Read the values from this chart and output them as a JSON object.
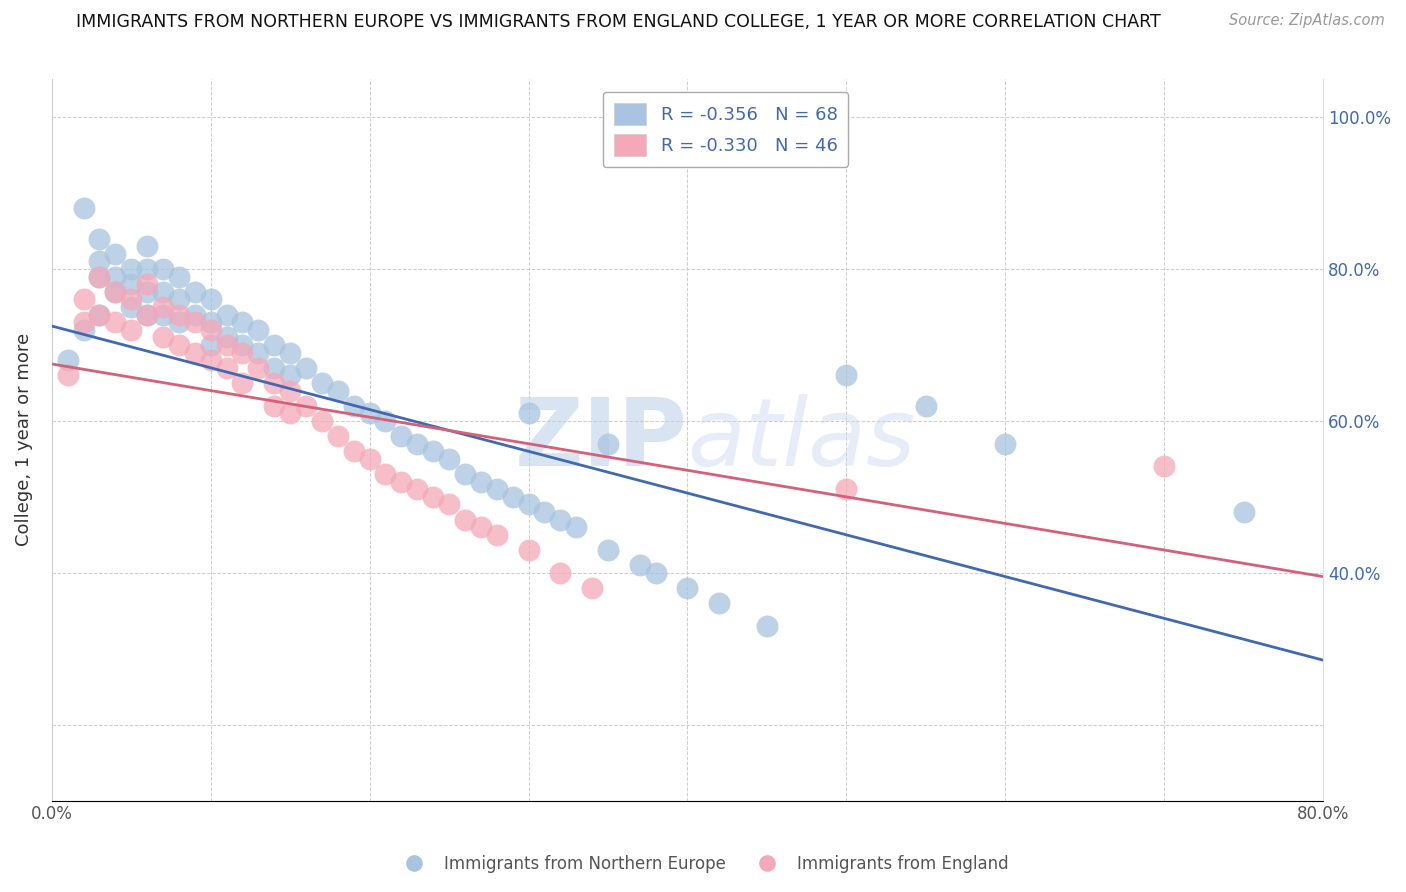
{
  "title": "IMMIGRANTS FROM NORTHERN EUROPE VS IMMIGRANTS FROM ENGLAND COLLEGE, 1 YEAR OR MORE CORRELATION CHART",
  "source": "Source: ZipAtlas.com",
  "ylabel": "College, 1 year or more",
  "xlabel": "",
  "xlim": [
    0.0,
    0.8
  ],
  "ylim": [
    0.1,
    1.05
  ],
  "blue_color": "#a8c4e0",
  "pink_color": "#f4a8b8",
  "blue_line_color": "#4169b0",
  "pink_line_color": "#d4607a",
  "legend_blue_label": "R = -0.356   N = 68",
  "legend_pink_label": "R = -0.330   N = 46",
  "bottom_legend_blue": "Immigrants from Northern Europe",
  "bottom_legend_pink": "Immigrants from England",
  "blue_x": [
    0.01,
    0.02,
    0.02,
    0.03,
    0.03,
    0.03,
    0.03,
    0.04,
    0.04,
    0.04,
    0.05,
    0.05,
    0.05,
    0.06,
    0.06,
    0.06,
    0.06,
    0.07,
    0.07,
    0.07,
    0.08,
    0.08,
    0.08,
    0.09,
    0.09,
    0.1,
    0.1,
    0.1,
    0.11,
    0.11,
    0.12,
    0.12,
    0.13,
    0.13,
    0.14,
    0.14,
    0.15,
    0.15,
    0.16,
    0.17,
    0.18,
    0.19,
    0.2,
    0.21,
    0.22,
    0.23,
    0.24,
    0.25,
    0.26,
    0.27,
    0.28,
    0.29,
    0.3,
    0.31,
    0.32,
    0.33,
    0.35,
    0.37,
    0.38,
    0.4,
    0.42,
    0.45,
    0.3,
    0.35,
    0.5,
    0.55,
    0.6,
    0.75
  ],
  "blue_y": [
    0.68,
    0.88,
    0.72,
    0.84,
    0.81,
    0.79,
    0.74,
    0.82,
    0.79,
    0.77,
    0.8,
    0.78,
    0.75,
    0.83,
    0.8,
    0.77,
    0.74,
    0.8,
    0.77,
    0.74,
    0.79,
    0.76,
    0.73,
    0.77,
    0.74,
    0.76,
    0.73,
    0.7,
    0.74,
    0.71,
    0.73,
    0.7,
    0.72,
    0.69,
    0.7,
    0.67,
    0.69,
    0.66,
    0.67,
    0.65,
    0.64,
    0.62,
    0.61,
    0.6,
    0.58,
    0.57,
    0.56,
    0.55,
    0.53,
    0.52,
    0.51,
    0.5,
    0.49,
    0.48,
    0.47,
    0.46,
    0.43,
    0.41,
    0.4,
    0.38,
    0.36,
    0.33,
    0.61,
    0.57,
    0.66,
    0.62,
    0.57,
    0.48
  ],
  "pink_x": [
    0.01,
    0.02,
    0.02,
    0.03,
    0.03,
    0.04,
    0.04,
    0.05,
    0.05,
    0.06,
    0.06,
    0.07,
    0.07,
    0.08,
    0.08,
    0.09,
    0.09,
    0.1,
    0.1,
    0.11,
    0.11,
    0.12,
    0.12,
    0.13,
    0.14,
    0.14,
    0.15,
    0.15,
    0.16,
    0.17,
    0.18,
    0.19,
    0.2,
    0.21,
    0.22,
    0.23,
    0.24,
    0.25,
    0.26,
    0.27,
    0.28,
    0.3,
    0.32,
    0.34,
    0.5,
    0.7
  ],
  "pink_y": [
    0.66,
    0.76,
    0.73,
    0.79,
    0.74,
    0.77,
    0.73,
    0.76,
    0.72,
    0.78,
    0.74,
    0.75,
    0.71,
    0.74,
    0.7,
    0.73,
    0.69,
    0.72,
    0.68,
    0.7,
    0.67,
    0.69,
    0.65,
    0.67,
    0.65,
    0.62,
    0.64,
    0.61,
    0.62,
    0.6,
    0.58,
    0.56,
    0.55,
    0.53,
    0.52,
    0.51,
    0.5,
    0.49,
    0.47,
    0.46,
    0.45,
    0.43,
    0.4,
    0.38,
    0.51,
    0.54
  ],
  "blue_trend_x": [
    0.0,
    0.8
  ],
  "blue_trend_y": [
    0.725,
    0.285
  ],
  "pink_trend_x": [
    0.0,
    0.8
  ],
  "pink_trend_y": [
    0.675,
    0.395
  ]
}
